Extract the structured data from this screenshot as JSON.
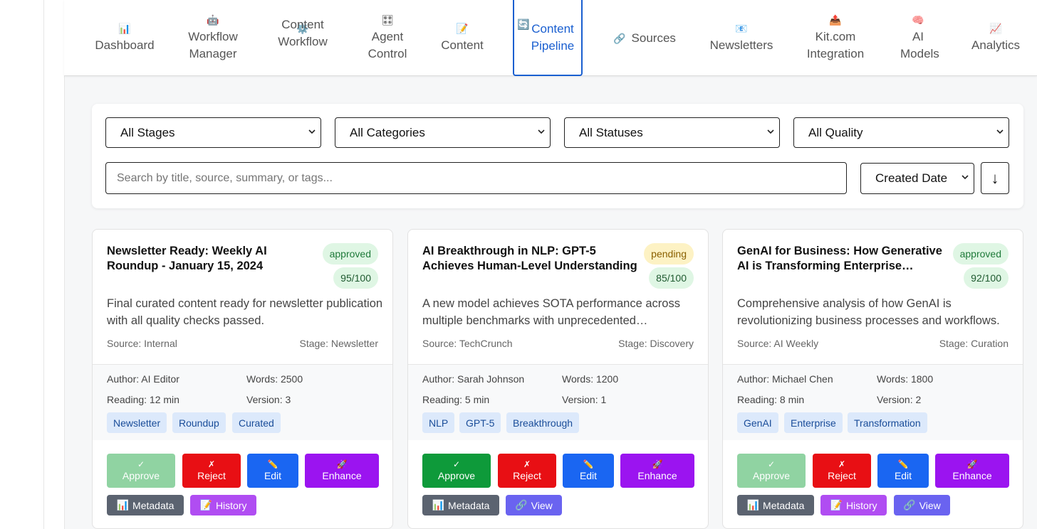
{
  "nav": {
    "items": [
      {
        "icon": "📊",
        "label": "Dashboard"
      },
      {
        "icon": "🤖",
        "label": "Workflow Manager"
      },
      {
        "icon": "⚙️",
        "label": "Content Workflow"
      },
      {
        "icon": "🎛",
        "label": "Agent Control"
      },
      {
        "icon": "📝",
        "label": "Content"
      },
      {
        "icon": "🔄",
        "label": "Content Pipeline"
      },
      {
        "icon": "🔗",
        "label": "Sources"
      },
      {
        "icon": "📧",
        "label": "Newsletters"
      },
      {
        "icon": "📤",
        "label": "Kit.com Integration"
      },
      {
        "icon": "🧠",
        "label": "AI Models"
      },
      {
        "icon": "📈",
        "label": "Analytics"
      }
    ],
    "active": "Content Pipeline"
  },
  "filters": {
    "stage": "All Stages",
    "category": "All Categories",
    "status": "All Statuses",
    "quality": "All Quality",
    "search_placeholder": "Search by title, source, summary, or tags...",
    "sort": "Created Date",
    "sort_direction": "↓"
  },
  "cards": [
    {
      "title": "Newsletter Ready: Weekly AI Roundup - January 15, 2024",
      "status": "approved",
      "score": "95/100",
      "summary": "Final curated content ready for newsletter publication with all quality checks passed.",
      "source": "Source: Internal",
      "stage": "Stage: Newsletter",
      "author": "Author: AI Editor",
      "words": "Words: 2500",
      "reading": "Reading: 12 min",
      "version": "Version: 3",
      "tags": [
        "Newsletter",
        "Roundup",
        "Curated"
      ],
      "actions": {
        "approve_icon": "✓",
        "approve": "Approve",
        "reject_icon": "✗",
        "reject": "Reject",
        "edit_icon": "✏️",
        "edit": "Edit",
        "enhance_icon": "🚀",
        "enhance": "Enhance"
      },
      "secondary": [
        {
          "kind": "metadata",
          "icon": "📊",
          "label": "Metadata"
        },
        {
          "kind": "history",
          "icon": "📝",
          "label": "History"
        }
      ]
    },
    {
      "title": "AI Breakthrough in NLP: GPT-5 Achieves Human-Level Understanding",
      "status": "pending",
      "score": "85/100",
      "summary": "A new model achieves SOTA performance across multiple benchmarks with unprecedented…",
      "source": "Source: TechCrunch",
      "stage": "Stage: Discovery",
      "author": "Author: Sarah Johnson",
      "words": "Words: 1200",
      "reading": "Reading: 5 min",
      "version": "Version: 1",
      "tags": [
        "NLP",
        "GPT-5",
        "Breakthrough"
      ],
      "actions": {
        "approve_icon": "✓",
        "approve": "Approve",
        "reject_icon": "✗",
        "reject": "Reject",
        "edit_icon": "✏️",
        "edit": "Edit",
        "enhance_icon": "🚀",
        "enhance": "Enhance"
      },
      "secondary": [
        {
          "kind": "metadata",
          "icon": "📊",
          "label": "Metadata"
        },
        {
          "kind": "view",
          "icon": "🔗",
          "label": "View"
        }
      ]
    },
    {
      "title": "GenAI for Business: How Generative AI is Transforming Enterprise…",
      "status": "approved",
      "score": "92/100",
      "summary": "Comprehensive analysis of how GenAI is revolutionizing business processes and workflows.",
      "source": "Source: AI Weekly",
      "stage": "Stage: Curation",
      "author": "Author: Michael Chen",
      "words": "Words: 1800",
      "reading": "Reading: 8 min",
      "version": "Version: 2",
      "tags": [
        "GenAI",
        "Enterprise",
        "Transformation"
      ],
      "actions": {
        "approve_icon": "✓",
        "approve": "Approve",
        "reject_icon": "✗",
        "reject": "Reject",
        "edit_icon": "✏️",
        "edit": "Edit",
        "enhance_icon": "🚀",
        "enhance": "Enhance"
      },
      "secondary": [
        {
          "kind": "metadata",
          "icon": "📊",
          "label": "Metadata"
        },
        {
          "kind": "history",
          "icon": "📝",
          "label": "History"
        },
        {
          "kind": "view",
          "icon": "🔗",
          "label": "View"
        }
      ]
    }
  ]
}
